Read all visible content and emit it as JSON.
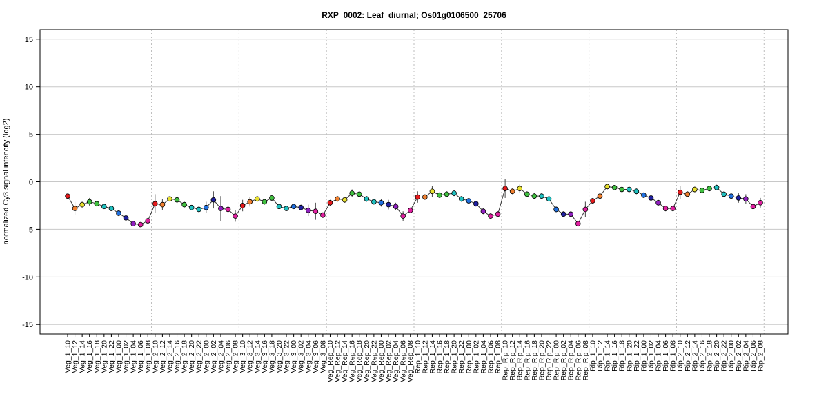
{
  "chart_data": {
    "type": "line",
    "title": "RXP_0002: Leaf_diurnal; Os01g0106500_25706",
    "ylabel": "normalized Cy3 signal intencity (log2)",
    "xlabel": "",
    "ylim": [
      -16,
      16
    ],
    "yticks": [
      15,
      10,
      5,
      0,
      -5,
      -10,
      -15
    ],
    "grid": true,
    "legend": "none",
    "group_separators_after": [
      11,
      23,
      35,
      47,
      59,
      71,
      83,
      95
    ],
    "palette": [
      "#e41a1c",
      "#f08030",
      "#e8e030",
      "#40c040",
      "#20c0c0",
      "#2070e0",
      "#2020a0",
      "#9020c0",
      "#e020a0"
    ],
    "categories": [
      "Veg_1_10",
      "Veg_1_12",
      "Veg_1_14",
      "Veg_1_16",
      "Veg_1_18",
      "Veg_1_20",
      "Veg_1_22",
      "Veg_1_00",
      "Veg_1_02",
      "Veg_1_04",
      "Veg_1_06",
      "Veg_1_08",
      "Veg_2_10",
      "Veg_2_12",
      "Veg_2_14",
      "Veg_2_16",
      "Veg_2_18",
      "Veg_2_20",
      "Veg_2_22",
      "Veg_2_00",
      "Veg_2_02",
      "Veg_2_04",
      "Veg_2_06",
      "Veg_2_08",
      "Veg_3_10",
      "Veg_3_12",
      "Veg_3_14",
      "Veg_3_16",
      "Veg_3_18",
      "Veg_3_20",
      "Veg_3_22",
      "Veg_3_00",
      "Veg_3_02",
      "Veg_3_04",
      "Veg_3_06",
      "Veg_3_08",
      "Veg_Rep_10",
      "Veg_Rep_12",
      "Veg_Rep_14",
      "Veg_Rep_16",
      "Veg_Rep_18",
      "Veg_Rep_20",
      "Veg_Rep_22",
      "Veg_Rep_00",
      "Veg_Rep_02",
      "Veg_Rep_04",
      "Veg_Rep_06",
      "Veg_Rep_08",
      "Rep_1_10",
      "Rep_1_12",
      "Rep_1_14",
      "Rep_1_16",
      "Rep_1_18",
      "Rep_1_20",
      "Rep_1_22",
      "Rep_1_00",
      "Rep_1_02",
      "Rep_1_04",
      "Rep_1_06",
      "Rep_1_08",
      "Rep_Rip_10",
      "Rep_Rip_12",
      "Rep_Rip_14",
      "Rep_Rip_16",
      "Rep_Rip_18",
      "Rep_Rip_20",
      "Rep_Rip_22",
      "Rep_Rip_00",
      "Rep_Rip_02",
      "Rep_Rip_04",
      "Rep_Rip_06",
      "Rep_Rip_08",
      "Rip_1_10",
      "Rip_1_12",
      "Rip_1_14",
      "Rip_1_16",
      "Rip_1_18",
      "Rip_1_20",
      "Rip_1_22",
      "Rip_1_00",
      "Rip_1_02",
      "Rip_1_04",
      "Rip_1_06",
      "Rip_1_08",
      "Rip_2_10",
      "Rip_2_12",
      "Rip_2_14",
      "Rip_2_16",
      "Rip_2_18",
      "Rip_2_20",
      "Rip_2_22",
      "Rip_2_00",
      "Rip_2_02",
      "Rip_2_04",
      "Rip_2_06",
      "Rip_2_08"
    ],
    "values": [
      -1.5,
      -2.8,
      -2.4,
      -2.1,
      -2.3,
      -2.6,
      -2.8,
      -3.3,
      -3.8,
      -4.4,
      -4.5,
      -4.1,
      -2.3,
      -2.4,
      -1.8,
      -1.9,
      -2.4,
      -2.7,
      -2.9,
      -2.7,
      -1.9,
      -2.8,
      -2.9,
      -3.6,
      -2.5,
      -2.1,
      -1.8,
      -2.1,
      -1.7,
      -2.6,
      -2.8,
      -2.6,
      -2.7,
      -3.0,
      -3.1,
      -3.5,
      -2.2,
      -1.8,
      -1.9,
      -1.2,
      -1.3,
      -1.8,
      -2.1,
      -2.2,
      -2.4,
      -2.6,
      -3.6,
      -3.0,
      -1.6,
      -1.6,
      -1.0,
      -1.4,
      -1.3,
      -1.2,
      -1.8,
      -2.0,
      -2.3,
      -3.1,
      -3.6,
      -3.4,
      -0.7,
      -1.0,
      -0.7,
      -1.3,
      -1.5,
      -1.5,
      -1.8,
      -2.9,
      -3.4,
      -3.4,
      -4.4,
      -2.9,
      -2.0,
      -1.5,
      -0.5,
      -0.6,
      -0.8,
      -0.8,
      -1.0,
      -1.4,
      -1.7,
      -2.2,
      -2.8,
      -2.8,
      -1.1,
      -1.3,
      -0.8,
      -0.9,
      -0.7,
      -0.6,
      -1.3,
      -1.5,
      -1.7,
      -1.8,
      -2.6,
      -2.2
    ],
    "errors": [
      0.1,
      0.7,
      0.3,
      0.4,
      0.3,
      0.2,
      0.2,
      0.3,
      0.2,
      0.2,
      0.2,
      0.3,
      1.0,
      0.6,
      0.2,
      0.5,
      0.3,
      0.2,
      0.3,
      0.6,
      0.9,
      1.3,
      1.7,
      0.6,
      0.6,
      0.5,
      0.3,
      0.3,
      0.3,
      0.2,
      0.2,
      0.2,
      0.3,
      0.6,
      0.9,
      0.3,
      0.3,
      0.3,
      0.3,
      0.4,
      0.3,
      0.3,
      0.3,
      0.4,
      0.5,
      0.4,
      0.5,
      0.3,
      0.6,
      0.3,
      0.6,
      0.3,
      0.3,
      0.3,
      0.3,
      0.3,
      0.3,
      0.3,
      0.3,
      0.3,
      1.0,
      0.3,
      0.4,
      0.3,
      0.3,
      0.3,
      0.5,
      0.3,
      0.3,
      0.3,
      0.3,
      0.8,
      0.3,
      0.4,
      0.3,
      0.2,
      0.2,
      0.3,
      0.3,
      0.3,
      0.3,
      0.3,
      0.3,
      0.3,
      0.7,
      0.3,
      0.3,
      0.3,
      0.3,
      0.3,
      0.3,
      0.3,
      0.5,
      0.5,
      0.3,
      0.5
    ]
  }
}
